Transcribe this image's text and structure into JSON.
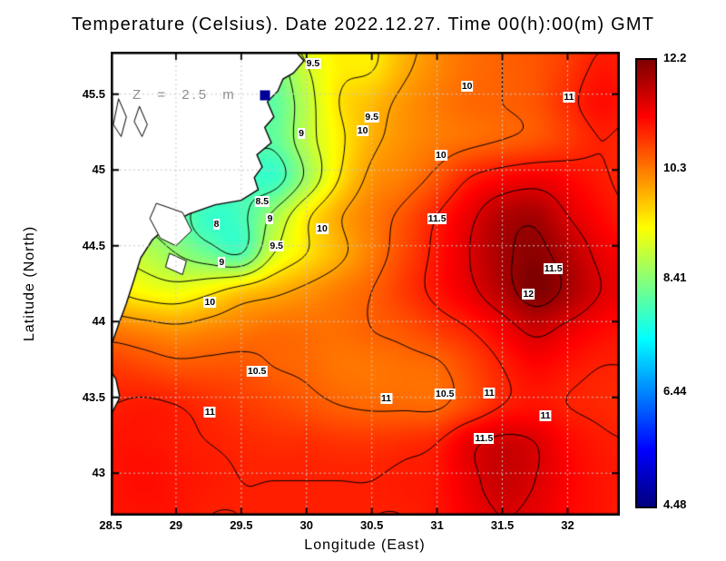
{
  "title": "Temperature (Celsius). Date 2022.12.27. Time 00(h):00(m) GMT",
  "xlabel": "Longitude (East)",
  "ylabel": "Latitude (North)",
  "annotation": {
    "text": "Z = 2.5 m",
    "lon": 29.68,
    "lat": 45.49,
    "marker_color": "#000099"
  },
  "axes": {
    "lon_min": 28.5,
    "lon_max": 32.4,
    "lat_min": 42.72,
    "lat_max": 45.78,
    "x_ticks": [
      28.5,
      29,
      29.5,
      30,
      30.5,
      31,
      31.5,
      32
    ],
    "x_tick_labels": [
      "28.5",
      "29",
      "29.5",
      "30",
      "30.5",
      "31",
      "31.5",
      "32"
    ],
    "y_ticks": [
      43,
      43.5,
      44,
      44.5,
      45,
      45.5
    ],
    "y_tick_labels": [
      "43",
      "43.5",
      "44",
      "44.5",
      "45",
      "45.5"
    ],
    "grid": true
  },
  "colorbar": {
    "min": 4.48,
    "max": 12.2,
    "label_values": [
      12.2,
      10.3,
      8.41,
      6.44,
      4.48
    ],
    "labels": [
      "12.2",
      "10.3",
      "8.41",
      "6.44",
      "4.48"
    ]
  },
  "map": {
    "land_fill": "#ffffff",
    "coast_color": "#000000",
    "land_polygons": [
      [
        [
          28.45,
          45.82
        ],
        [
          29.88,
          45.82
        ],
        [
          29.98,
          45.72
        ],
        [
          29.9,
          45.64
        ],
        [
          29.82,
          45.6
        ],
        [
          29.78,
          45.52
        ],
        [
          29.7,
          45.45
        ],
        [
          29.75,
          45.35
        ],
        [
          29.68,
          45.28
        ],
        [
          29.73,
          45.18
        ],
        [
          29.62,
          45.1
        ],
        [
          29.66,
          45.02
        ],
        [
          29.6,
          44.95
        ],
        [
          29.63,
          44.87
        ],
        [
          29.5,
          44.8
        ],
        [
          29.3,
          44.77
        ],
        [
          29.1,
          44.71
        ],
        [
          28.95,
          44.64
        ],
        [
          28.82,
          44.54
        ],
        [
          28.73,
          44.42
        ],
        [
          28.68,
          44.28
        ],
        [
          28.62,
          44.12
        ],
        [
          28.56,
          43.98
        ],
        [
          28.52,
          43.88
        ],
        [
          28.45,
          43.8
        ]
      ],
      [
        [
          28.45,
          43.74
        ],
        [
          28.54,
          43.62
        ],
        [
          28.57,
          43.5
        ],
        [
          28.5,
          43.38
        ],
        [
          28.45,
          43.3
        ]
      ]
    ],
    "lakes": [
      [
        [
          28.85,
          44.78
        ],
        [
          29.05,
          44.72
        ],
        [
          29.12,
          44.6
        ],
        [
          29.0,
          44.5
        ],
        [
          28.88,
          44.55
        ],
        [
          28.8,
          44.68
        ]
      ],
      [
        [
          28.95,
          44.45
        ],
        [
          29.08,
          44.4
        ],
        [
          29.05,
          44.31
        ],
        [
          28.92,
          44.36
        ]
      ],
      [
        [
          28.56,
          45.47
        ],
        [
          28.62,
          45.35
        ],
        [
          28.58,
          45.22
        ],
        [
          28.52,
          45.3
        ]
      ],
      [
        [
          28.72,
          45.42
        ],
        [
          28.78,
          45.3
        ],
        [
          28.74,
          45.22
        ],
        [
          28.68,
          45.32
        ]
      ]
    ]
  },
  "chart_data": {
    "type": "heatmap",
    "title": "Temperature (Celsius). Date 2022.12.27. Time 00(h):00(m) GMT",
    "units": "Celsius",
    "depth_label": "Z = 2.5 m",
    "lon_range": [
      28.5,
      32.4
    ],
    "lat_range": [
      42.72,
      45.78
    ],
    "lon": [
      28.5,
      28.75,
      29.0,
      29.25,
      29.5,
      29.75,
      30.0,
      30.25,
      30.5,
      30.75,
      31.0,
      31.25,
      31.5,
      31.75,
      32.0,
      32.25,
      32.5
    ],
    "lat": [
      45.95,
      45.7,
      45.45,
      45.2,
      44.95,
      44.7,
      44.45,
      44.2,
      43.95,
      43.7,
      43.45,
      43.2,
      42.95,
      42.7
    ],
    "temperature": [
      [
        9.0,
        9.0,
        9.0,
        8.8,
        8.7,
        8.6,
        9.4,
        9.55,
        9.5,
        9.8,
        10.2,
        10.4,
        10.5,
        10.6,
        10.7,
        10.9,
        11.0
      ],
      [
        9.0,
        9.0,
        8.8,
        8.6,
        8.5,
        8.3,
        9.0,
        9.4,
        9.45,
        9.9,
        10.2,
        10.4,
        10.5,
        10.6,
        10.8,
        11.05,
        11.0
      ],
      [
        9.0,
        9.0,
        8.8,
        8.5,
        8.3,
        8.1,
        8.8,
        9.5,
        9.8,
        10.1,
        10.3,
        10.45,
        10.5,
        10.6,
        10.9,
        11.15,
        11.05
      ],
      [
        9.0,
        9.0,
        8.8,
        8.4,
        8.2,
        8.1,
        8.8,
        9.4,
        9.9,
        10.15,
        10.3,
        10.4,
        10.5,
        10.6,
        10.8,
        11.0,
        10.9
      ],
      [
        8.8,
        8.8,
        8.6,
        8.3,
        8.0,
        7.8,
        8.6,
        9.5,
        10.1,
        10.3,
        10.6,
        11.0,
        11.2,
        11.3,
        11.2,
        11.05,
        10.9
      ],
      [
        8.8,
        8.5,
        8.2,
        7.8,
        7.9,
        8.6,
        9.4,
        9.95,
        10.3,
        10.6,
        11.0,
        11.4,
        11.8,
        11.9,
        11.5,
        11.2,
        11.0
      ],
      [
        9.0,
        8.8,
        8.5,
        8.2,
        8.0,
        9.0,
        9.5,
        9.9,
        10.3,
        10.7,
        11.1,
        11.5,
        11.9,
        12.1,
        11.8,
        11.4,
        11.2
      ],
      [
        9.5,
        9.3,
        9.2,
        9.4,
        9.7,
        9.9,
        10.1,
        10.3,
        10.5,
        10.8,
        11.1,
        11.4,
        11.8,
        12.2,
        11.9,
        11.5,
        11.3
      ],
      [
        10.3,
        10.2,
        10.1,
        10.2,
        10.3,
        10.4,
        10.4,
        10.4,
        10.5,
        10.6,
        10.8,
        11.0,
        11.3,
        11.6,
        11.4,
        11.2,
        11.1
      ],
      [
        10.8,
        10.7,
        10.6,
        10.6,
        10.6,
        10.5,
        10.45,
        10.35,
        10.35,
        10.4,
        10.45,
        10.7,
        11.0,
        11.2,
        11.1,
        11.0,
        11.0
      ],
      [
        11.0,
        11.05,
        11.0,
        10.9,
        10.8,
        10.7,
        10.6,
        10.5,
        10.45,
        10.45,
        10.45,
        10.7,
        11.0,
        11.1,
        11.0,
        10.95,
        10.9
      ],
      [
        11.1,
        11.1,
        11.05,
        11.0,
        10.95,
        10.9,
        10.9,
        10.85,
        10.85,
        10.9,
        11.0,
        11.4,
        11.6,
        11.5,
        11.2,
        11.05,
        11.0
      ],
      [
        11.1,
        11.15,
        11.1,
        11.05,
        11.0,
        11.0,
        11.0,
        11.0,
        11.0,
        11.05,
        11.1,
        11.4,
        11.65,
        11.5,
        11.25,
        11.1,
        11.05
      ],
      [
        11.1,
        11.1,
        11.1,
        11.0,
        11.0,
        11.0,
        11.0,
        11.0,
        11.0,
        11.0,
        11.1,
        11.3,
        11.5,
        11.4,
        11.2,
        11.1,
        11.0
      ]
    ],
    "contour_levels": [
      7.5,
      8,
      8.5,
      9,
      9.5,
      10,
      10.5,
      11,
      11.5,
      12
    ],
    "contour_labels": [
      {
        "v": "9.5",
        "lon": 30.05,
        "lat": 45.7
      },
      {
        "v": "10",
        "lon": 31.23,
        "lat": 45.55
      },
      {
        "v": "11",
        "lon": 32.01,
        "lat": 45.48
      },
      {
        "v": "9.5",
        "lon": 30.5,
        "lat": 45.35
      },
      {
        "v": "10",
        "lon": 30.43,
        "lat": 45.26
      },
      {
        "v": "9",
        "lon": 29.96,
        "lat": 45.24
      },
      {
        "v": "10",
        "lon": 31.03,
        "lat": 45.1
      },
      {
        "v": "8.5",
        "lon": 29.66,
        "lat": 44.79
      },
      {
        "v": "9",
        "lon": 29.72,
        "lat": 44.68
      },
      {
        "v": "8",
        "lon": 29.31,
        "lat": 44.64
      },
      {
        "v": "10",
        "lon": 30.12,
        "lat": 44.61
      },
      {
        "v": "11.5",
        "lon": 31.0,
        "lat": 44.68
      },
      {
        "v": "9.5",
        "lon": 29.77,
        "lat": 44.5
      },
      {
        "v": "9",
        "lon": 29.35,
        "lat": 44.39
      },
      {
        "v": "11.5",
        "lon": 31.89,
        "lat": 44.35
      },
      {
        "v": "12",
        "lon": 31.7,
        "lat": 44.18
      },
      {
        "v": "10",
        "lon": 29.26,
        "lat": 44.13
      },
      {
        "v": "10.5",
        "lon": 29.62,
        "lat": 43.67
      },
      {
        "v": "11",
        "lon": 30.61,
        "lat": 43.49
      },
      {
        "v": "10.5",
        "lon": 31.06,
        "lat": 43.52
      },
      {
        "v": "11",
        "lon": 31.4,
        "lat": 43.53
      },
      {
        "v": "11",
        "lon": 31.83,
        "lat": 43.38
      },
      {
        "v": "11",
        "lon": 29.26,
        "lat": 43.4
      },
      {
        "v": "11.5",
        "lon": 31.36,
        "lat": 43.23
      }
    ]
  }
}
